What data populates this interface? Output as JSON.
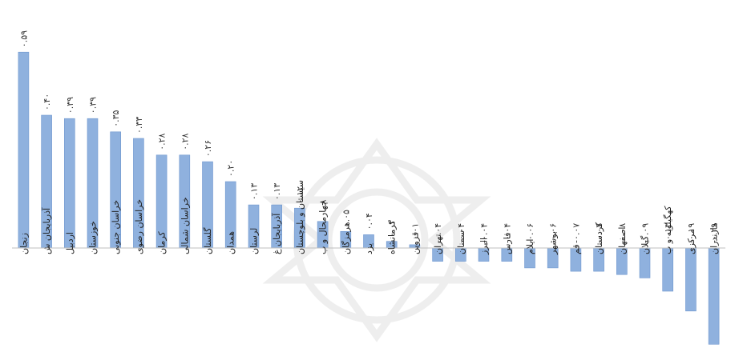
{
  "chart_data": {
    "type": "bar",
    "categories": [
      "زنجان",
      "آذربایجان ش",
      "اردبیل",
      "خوزستان",
      "خراسان جنوبی",
      "خراسان رضوی",
      "کرمان",
      "خراسان شمالی",
      "گلستان",
      "همدان",
      "لرستان",
      "آذربایجان غ",
      "سیستان و بلوچستان",
      "چهارمحال و ب",
      "هرمزگان",
      "یزد",
      "کرمانشاه",
      "قزوین",
      "تهران",
      "سمنان",
      "البرز",
      "فارس",
      "ایلام",
      "بوشهر",
      "قم",
      "کردستان",
      "اصفهان",
      "گیلان",
      "کهگیلویه و ب",
      "مرکزی",
      "مازندران"
    ],
    "values": [
      0.59,
      0.4,
      0.39,
      0.39,
      0.35,
      0.33,
      0.28,
      0.28,
      0.26,
      0.2,
      0.13,
      0.13,
      0.12,
      0.08,
      0.05,
      0.04,
      0.02,
      0.01,
      -0.04,
      -0.04,
      -0.04,
      -0.04,
      -0.06,
      -0.06,
      -0.07,
      -0.07,
      -0.08,
      -0.09,
      -0.13,
      -0.19,
      -0.29
    ],
    "value_labels": [
      "۰.۵۹",
      "۰.۴۰",
      "۰.۳۹",
      "۰.۳۹",
      "۰.۳۵",
      "۰.۳۳",
      "۰.۲۸",
      "۰.۲۸",
      "۰.۲۶",
      "۰.۲۰",
      "۰.۱۳",
      "۰.۱۳",
      "۰.۱۲",
      "۰.۰۸",
      "۰.۰۵",
      "۰.۰۴",
      "۰.۰۲",
      "۰.۰۱",
      "-۰.۰۴",
      "-۰.۰۴",
      "-۰.۰۴",
      "-۰.۰۴",
      "-۰.۰۶",
      "-۰.۰۶",
      "-۰.۰۷",
      "-۰.۰۷",
      "-۰.۰۸",
      "-۰.۰۹",
      "-۰.۱۳",
      "-۰.۱۹",
      "-۰.۲۹"
    ],
    "title": "",
    "xlabel": "",
    "ylabel": "",
    "ylim": [
      -0.32,
      0.62
    ],
    "grid": false,
    "legend": "none",
    "bar_color": "#8FB1DE",
    "bar_stroke": "#6F97CF"
  }
}
